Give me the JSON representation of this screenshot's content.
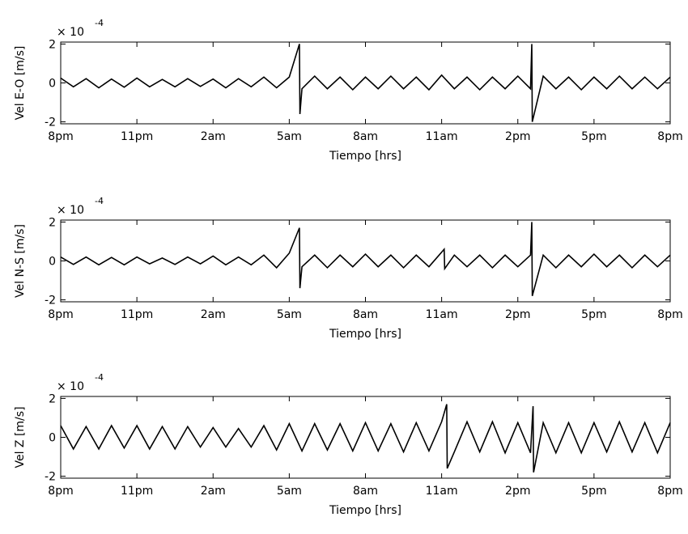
{
  "chart_data": [
    {
      "type": "line",
      "ylabel": "Vel E-O [m/s]",
      "xlabel": "Tiempo [hrs]",
      "y_multiplier_base": "× 10",
      "y_multiplier_exponent": "-4",
      "xlim": [
        0,
        24
      ],
      "ylim": [
        -2.1,
        2.1
      ],
      "yticks": [
        -2,
        0,
        2
      ],
      "xticks": [
        {
          "value": 0,
          "label": "8pm"
        },
        {
          "value": 3,
          "label": "11pm"
        },
        {
          "value": 6,
          "label": "2am"
        },
        {
          "value": 9,
          "label": "5am"
        },
        {
          "value": 12,
          "label": "8am"
        },
        {
          "value": 15,
          "label": "11am"
        },
        {
          "value": 18,
          "label": "2pm"
        },
        {
          "value": 21,
          "label": "5pm"
        },
        {
          "value": 24,
          "label": "8pm"
        }
      ],
      "x": [
        0,
        0.5,
        1,
        1.5,
        2,
        2.5,
        3,
        3.5,
        4,
        4.5,
        5,
        5.5,
        6,
        6.5,
        7,
        7.5,
        8,
        8.5,
        9,
        9.4,
        9.42,
        9.5,
        10,
        10.5,
        11,
        11.5,
        12,
        12.5,
        13,
        13.5,
        14,
        14.5,
        15,
        15.5,
        16,
        16.5,
        17,
        17.5,
        18,
        18.5,
        18.55,
        18.57,
        19,
        19.5,
        20,
        20.5,
        21,
        21.5,
        22,
        22.5,
        23,
        23.5,
        24
      ],
      "series": [
        {
          "color": "#000000",
          "values": [
            0.25,
            -0.2,
            0.22,
            -0.25,
            0.2,
            -0.22,
            0.25,
            -0.2,
            0.18,
            -0.2,
            0.22,
            -0.18,
            0.2,
            -0.25,
            0.22,
            -0.2,
            0.3,
            -0.25,
            0.3,
            2,
            -1.6,
            -0.3,
            0.35,
            -0.3,
            0.3,
            -0.35,
            0.3,
            -0.3,
            0.35,
            -0.3,
            0.3,
            -0.35,
            0.4,
            -0.3,
            0.3,
            -0.35,
            0.3,
            -0.3,
            0.35,
            -0.3,
            2,
            -2,
            0.35,
            -0.3,
            0.3,
            -0.35,
            0.3,
            -0.3,
            0.35,
            -0.3,
            0.3,
            -0.3,
            0.3
          ]
        }
      ]
    },
    {
      "type": "line",
      "ylabel": "Vel N-S [m/s]",
      "xlabel": "Tiempo [hrs]",
      "y_multiplier_base": "× 10",
      "y_multiplier_exponent": "-4",
      "xlim": [
        0,
        24
      ],
      "ylim": [
        -2.1,
        2.1
      ],
      "yticks": [
        -2,
        0,
        2
      ],
      "xticks": [
        {
          "value": 0,
          "label": "8pm"
        },
        {
          "value": 3,
          "label": "11pm"
        },
        {
          "value": 6,
          "label": "2am"
        },
        {
          "value": 9,
          "label": "5am"
        },
        {
          "value": 12,
          "label": "8am"
        },
        {
          "value": 15,
          "label": "11am"
        },
        {
          "value": 18,
          "label": "2pm"
        },
        {
          "value": 21,
          "label": "5pm"
        },
        {
          "value": 24,
          "label": "8pm"
        }
      ],
      "x": [
        0,
        0.5,
        1,
        1.5,
        2,
        2.5,
        3,
        3.5,
        4,
        4.5,
        5,
        5.5,
        6,
        6.5,
        7,
        7.5,
        8,
        8.5,
        9,
        9.4,
        9.42,
        9.5,
        10,
        10.5,
        11,
        11.5,
        12,
        12.5,
        13,
        13.5,
        14,
        14.5,
        15.1,
        15.12,
        15.5,
        16,
        16.5,
        17,
        17.5,
        18,
        18.5,
        18.55,
        18.57,
        19,
        19.5,
        20,
        20.5,
        21,
        21.5,
        22,
        22.5,
        23,
        23.5,
        24
      ],
      "series": [
        {
          "color": "#000000",
          "values": [
            0.2,
            -0.18,
            0.2,
            -0.2,
            0.18,
            -0.2,
            0.2,
            -0.15,
            0.15,
            -0.18,
            0.2,
            -0.15,
            0.25,
            -0.2,
            0.2,
            -0.2,
            0.3,
            -0.35,
            0.4,
            1.7,
            -1.4,
            -0.3,
            0.3,
            -0.35,
            0.3,
            -0.3,
            0.35,
            -0.3,
            0.3,
            -0.35,
            0.3,
            -0.3,
            0.6,
            -0.4,
            0.3,
            -0.3,
            0.3,
            -0.35,
            0.3,
            -0.3,
            0.3,
            2,
            -1.8,
            0.3,
            -0.35,
            0.3,
            -0.3,
            0.35,
            -0.3,
            0.3,
            -0.35,
            0.3,
            -0.3,
            0.3
          ]
        }
      ]
    },
    {
      "type": "line",
      "ylabel": "Vel Z [m/s]",
      "xlabel": "Tiempo [hrs]",
      "y_multiplier_base": "× 10",
      "y_multiplier_exponent": "-4",
      "xlim": [
        0,
        24
      ],
      "ylim": [
        -2.1,
        2.1
      ],
      "yticks": [
        -2,
        0,
        2
      ],
      "xticks": [
        {
          "value": 0,
          "label": "8pm"
        },
        {
          "value": 3,
          "label": "11pm"
        },
        {
          "value": 6,
          "label": "2am"
        },
        {
          "value": 9,
          "label": "5am"
        },
        {
          "value": 12,
          "label": "8am"
        },
        {
          "value": 15,
          "label": "11am"
        },
        {
          "value": 18,
          "label": "2pm"
        },
        {
          "value": 21,
          "label": "5pm"
        },
        {
          "value": 24,
          "label": "8pm"
        }
      ],
      "x": [
        0,
        0.5,
        1,
        1.5,
        2,
        2.5,
        3,
        3.5,
        4,
        4.5,
        5,
        5.5,
        6,
        6.5,
        7,
        7.5,
        8,
        8.5,
        9,
        9.5,
        10,
        10.5,
        11,
        11.5,
        12,
        12.5,
        13,
        13.5,
        14,
        14.5,
        15,
        15.2,
        15.22,
        15.5,
        16,
        16.5,
        17,
        17.5,
        18,
        18.5,
        18.6,
        18.62,
        19,
        19.5,
        20,
        20.5,
        21,
        21.5,
        22,
        22.5,
        23,
        23.5,
        24
      ],
      "series": [
        {
          "color": "#000000",
          "values": [
            0.6,
            -0.6,
            0.55,
            -0.6,
            0.6,
            -0.55,
            0.6,
            -0.6,
            0.55,
            -0.6,
            0.55,
            -0.5,
            0.5,
            -0.5,
            0.45,
            -0.5,
            0.6,
            -0.65,
            0.7,
            -0.7,
            0.7,
            -0.65,
            0.7,
            -0.7,
            0.75,
            -0.7,
            0.7,
            -0.75,
            0.75,
            -0.7,
            0.8,
            1.7,
            -1.6,
            -0.75,
            0.8,
            -0.75,
            0.8,
            -0.8,
            0.75,
            -0.8,
            1.6,
            -1.8,
            0.75,
            -0.8,
            0.75,
            -0.8,
            0.75,
            -0.75,
            0.8,
            -0.75,
            0.75,
            -0.8,
            0.75
          ]
        }
      ]
    }
  ]
}
